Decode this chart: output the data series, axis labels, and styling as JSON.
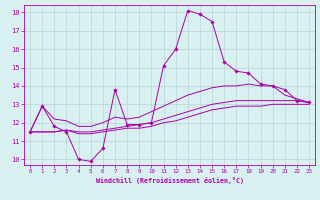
{
  "xlabel": "Windchill (Refroidissement éolien,°C)",
  "background_color": "#d8f0f0",
  "line_color": "#aa00aa",
  "grid_color": "#b8d4d4",
  "xlim": [
    -0.5,
    23.5
  ],
  "ylim": [
    9.7,
    18.4
  ],
  "xticks": [
    0,
    1,
    2,
    3,
    4,
    5,
    6,
    7,
    8,
    9,
    10,
    11,
    12,
    13,
    14,
    15,
    16,
    17,
    18,
    19,
    20,
    21,
    22,
    23
  ],
  "yticks": [
    10,
    11,
    12,
    13,
    14,
    15,
    16,
    17,
    18
  ],
  "line1_x": [
    0,
    1,
    2,
    3,
    4,
    5,
    6,
    7,
    8,
    9,
    10,
    11,
    12,
    13,
    14,
    15,
    16,
    17,
    18,
    19,
    20,
    21,
    22,
    23
  ],
  "line1_y": [
    11.5,
    12.9,
    11.8,
    11.5,
    10.0,
    9.9,
    10.6,
    13.8,
    11.9,
    11.9,
    12.0,
    15.1,
    16.0,
    18.1,
    17.9,
    17.5,
    15.3,
    14.8,
    14.7,
    14.1,
    14.0,
    13.8,
    13.2,
    13.1
  ],
  "line2_x": [
    0,
    1,
    2,
    3,
    4,
    5,
    6,
    7,
    8,
    9,
    10,
    11,
    12,
    13,
    14,
    15,
    16,
    17,
    18,
    19,
    20,
    21,
    22,
    23
  ],
  "line2_y": [
    11.5,
    12.9,
    12.2,
    12.1,
    11.8,
    11.8,
    12.0,
    12.3,
    12.2,
    12.3,
    12.6,
    12.9,
    13.2,
    13.5,
    13.7,
    13.9,
    14.0,
    14.0,
    14.1,
    14.0,
    14.0,
    13.5,
    13.3,
    13.1
  ],
  "line3_x": [
    0,
    1,
    2,
    3,
    4,
    5,
    6,
    7,
    8,
    9,
    10,
    11,
    12,
    13,
    14,
    15,
    16,
    17,
    18,
    19,
    20,
    21,
    22,
    23
  ],
  "line3_y": [
    11.5,
    11.5,
    11.5,
    11.6,
    11.5,
    11.5,
    11.6,
    11.7,
    11.8,
    11.9,
    12.0,
    12.2,
    12.4,
    12.6,
    12.8,
    13.0,
    13.1,
    13.2,
    13.2,
    13.2,
    13.2,
    13.2,
    13.2,
    13.1
  ],
  "line4_x": [
    0,
    1,
    2,
    3,
    4,
    5,
    6,
    7,
    8,
    9,
    10,
    11,
    12,
    13,
    14,
    15,
    16,
    17,
    18,
    19,
    20,
    21,
    22,
    23
  ],
  "line4_y": [
    11.5,
    11.5,
    11.5,
    11.6,
    11.4,
    11.4,
    11.5,
    11.6,
    11.7,
    11.7,
    11.8,
    12.0,
    12.1,
    12.3,
    12.5,
    12.7,
    12.8,
    12.9,
    12.9,
    12.9,
    13.0,
    13.0,
    13.0,
    13.0
  ]
}
